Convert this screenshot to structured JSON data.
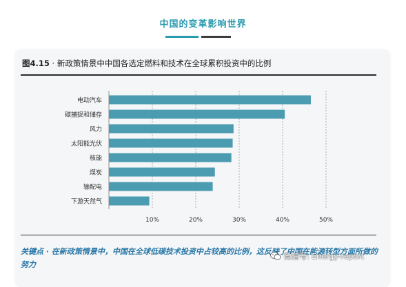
{
  "header": {
    "title": "中国的变革影响世界"
  },
  "figure": {
    "number": "图4.15",
    "title_rest": " · 新政策情景中中国各选定燃料和技术在全球累积投资中的比例"
  },
  "key_point": "关键点 · 在新政策情景中，中国在全球低碳技术投资中占较高的比例，这反映了中国在能源转型方面所做的努力",
  "watermark": {
    "text": "微信号: Energy-report"
  },
  "colors": {
    "bar": "#4b9cb0",
    "accent": "#2a9ab0",
    "key_point_text": "#2a78a8"
  },
  "chart_data": {
    "type": "bar",
    "orientation": "horizontal",
    "categories": [
      "电动汽车",
      "碳捕捉和储存",
      "风力",
      "太阳能光伏",
      "核能",
      "煤炭",
      "输配电",
      "下游天然气"
    ],
    "values": [
      46.5,
      40.5,
      28.7,
      28.5,
      28.2,
      24.4,
      23.9,
      9.3
    ],
    "unit": "%",
    "xlim": [
      0,
      50
    ],
    "xticks": [
      "10%",
      "20%",
      "30%",
      "40%",
      "50%"
    ],
    "xtick_values": [
      10,
      20,
      30,
      40,
      50
    ],
    "grid": "vertical dashed",
    "legend": "none"
  }
}
